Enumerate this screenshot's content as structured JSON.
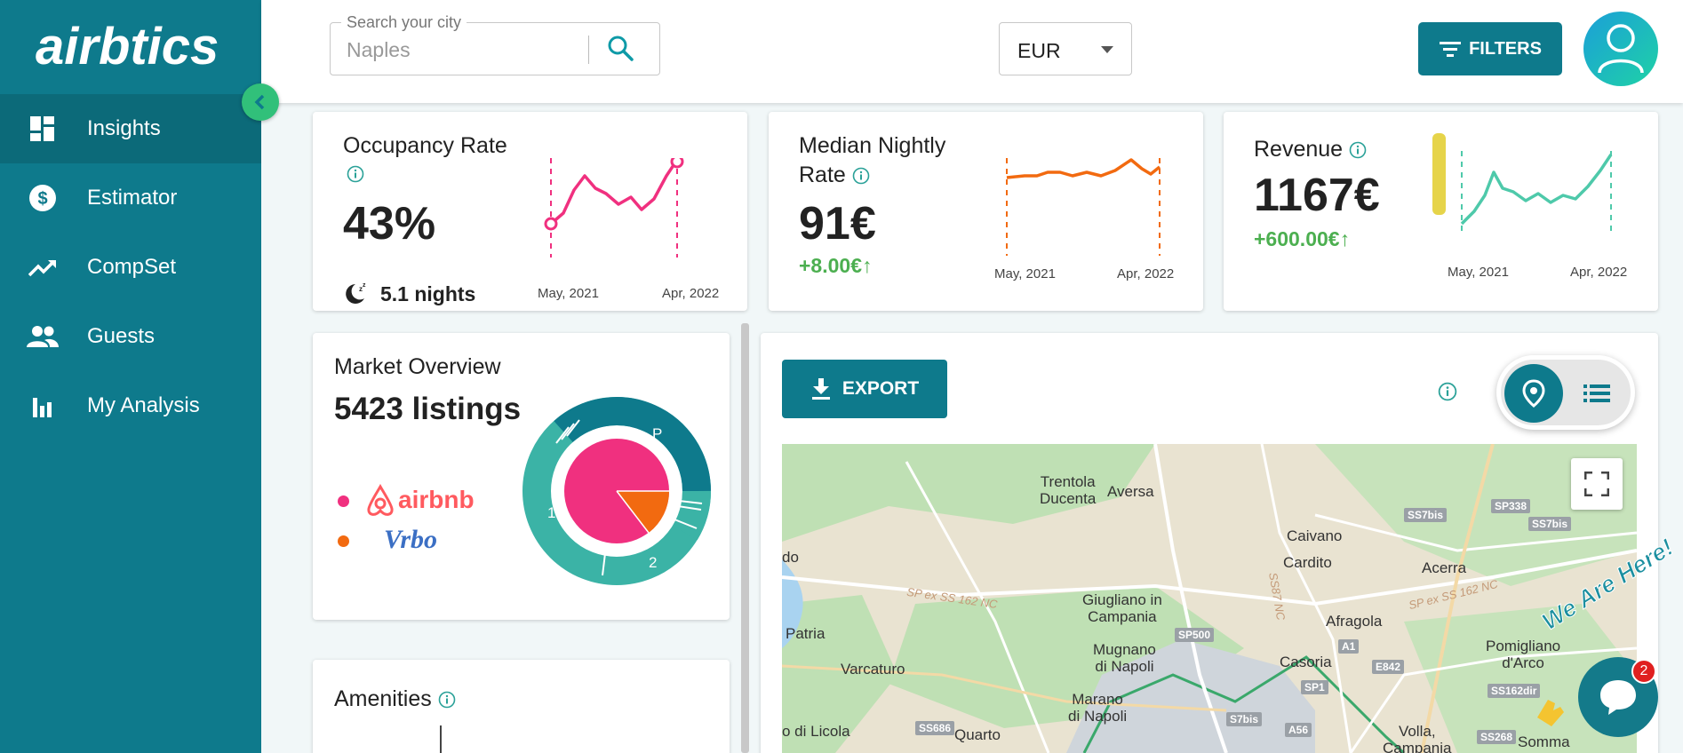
{
  "brand": {
    "logo_text": "airbtics"
  },
  "sidebar": {
    "items": [
      {
        "label": "Insights",
        "icon": "dashboard-icon",
        "active": true
      },
      {
        "label": "Estimator",
        "icon": "dollar-circle-icon",
        "active": false
      },
      {
        "label": "CompSet",
        "icon": "trending-up-icon",
        "active": false
      },
      {
        "label": "Guests",
        "icon": "people-icon",
        "active": false
      },
      {
        "label": "My Analysis",
        "icon": "bar-chart-icon",
        "active": false
      }
    ]
  },
  "header": {
    "search": {
      "legend": "Search your city",
      "value": "Naples"
    },
    "currency": {
      "value": "EUR"
    },
    "filters_label": "FILTERS"
  },
  "kpis": {
    "occupancy": {
      "title": "Occupancy Rate",
      "value": "43%",
      "nights": "5.1 nights",
      "x_start": "May, 2021",
      "x_end": "Apr, 2022",
      "color": "#f0307f"
    },
    "nightly": {
      "title_line1": "Median Nightly",
      "title_line2": "Rate",
      "value": "91€",
      "delta": "+8.00€↑",
      "x_start": "May, 2021",
      "x_end": "Apr, 2022",
      "color": "#f26a10"
    },
    "revenue": {
      "title": "Revenue",
      "value": "1167€",
      "delta": "+600.00€↑",
      "x_start": "May, 2021",
      "x_end": "Apr, 2022",
      "color": "#4ec9aa"
    }
  },
  "market": {
    "title": "Market Overview",
    "listings": "5423 listings",
    "legend": [
      {
        "name": "airbnb",
        "color": "#f0307f"
      },
      {
        "name": "Vrbo",
        "color": "#f26a10"
      }
    ],
    "ring_labels": [
      "P",
      "1",
      "2"
    ]
  },
  "amenities": {
    "title": "Amenities"
  },
  "map_panel": {
    "export_label": "EXPORT",
    "places": [
      {
        "name": "Trentola\nDucenta"
      },
      {
        "name": "Aversa"
      },
      {
        "name": "Caivano"
      },
      {
        "name": "Cardito"
      },
      {
        "name": "Acerra"
      },
      {
        "name": "Giugliano in\nCampania"
      },
      {
        "name": "Afragola"
      },
      {
        "name": "Patria"
      },
      {
        "name": "Mugnano\ndi Napoli"
      },
      {
        "name": "Casoria"
      },
      {
        "name": "Pomigliano\nd'Arco"
      },
      {
        "name": "Varcaturo"
      },
      {
        "name": "Marano\ndi Napoli"
      },
      {
        "name": "Quarto"
      },
      {
        "name": "o di Licola"
      },
      {
        "name": "Volla,\nCampania"
      },
      {
        "name": "Somma"
      },
      {
        "name": "do"
      }
    ],
    "roads": [
      "SS7bis",
      "SP338",
      "SS7bis",
      "SP500",
      "A1",
      "E842",
      "SP1",
      "SS162dir",
      "A56",
      "SS686",
      "SS268",
      "S7bis"
    ],
    "road_italic": [
      "SP ex SS 162 NC",
      "SP ex SS 162 NC",
      "SS87 NC"
    ]
  },
  "chat": {
    "badge": "2",
    "greeting": "We Are Here!"
  }
}
